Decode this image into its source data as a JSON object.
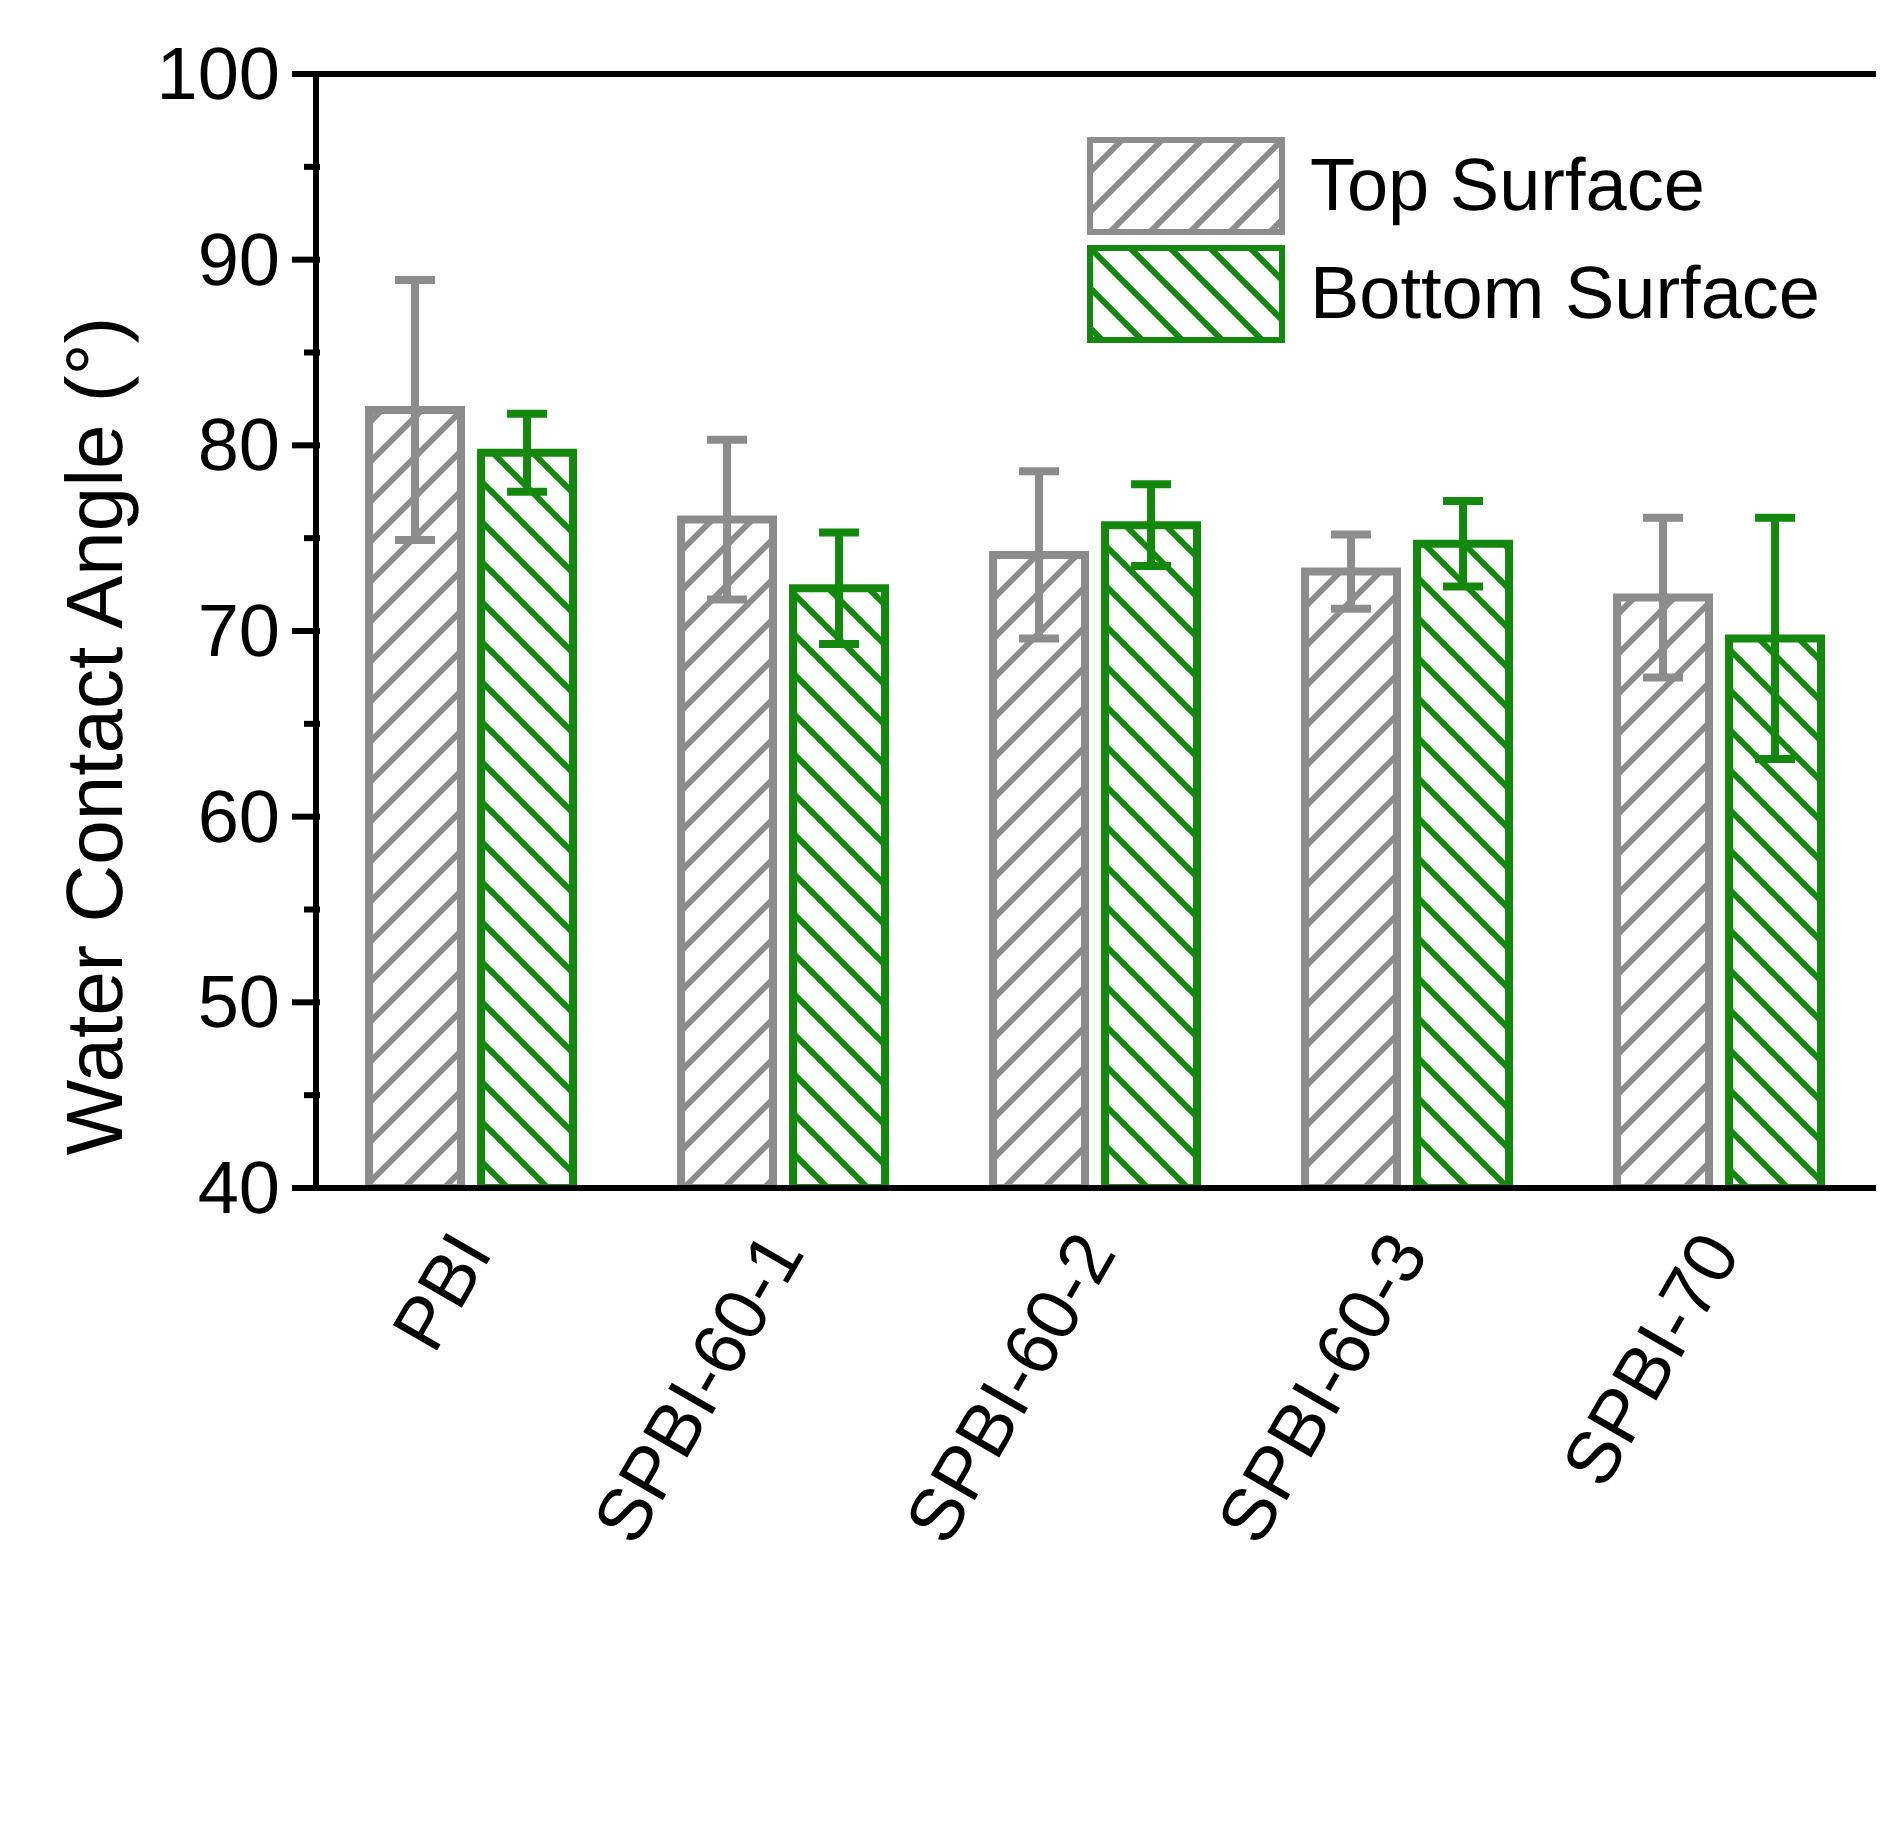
{
  "chart_data": {
    "type": "bar",
    "ylabel": "Water Contact Angle (°)",
    "categories": [
      "PBI",
      "SPBI-60-1",
      "SPBI-60-2",
      "SPBI-60-3",
      "SPBI-70"
    ],
    "series": [
      {
        "name": "Top Surface",
        "color": "#8c8c8c",
        "values": [
          81.9,
          76.0,
          74.1,
          73.2,
          71.8
        ],
        "errors": [
          7.0,
          4.3,
          4.5,
          2.0,
          4.3
        ]
      },
      {
        "name": "Bottom Surface",
        "color": "#14880e",
        "values": [
          79.6,
          72.3,
          75.7,
          74.7,
          69.6
        ],
        "errors": [
          2.1,
          3.0,
          2.2,
          2.3,
          6.5
        ]
      }
    ],
    "ylim": [
      40,
      100
    ],
    "yticks": [
      40,
      {
        "value": 45,
        "label": null
      },
      50,
      {
        "value": 55,
        "label": null
      },
      60,
      {
        "value": 65,
        "label": null
      },
      70,
      {
        "value": 75,
        "label": null
      },
      80,
      {
        "value": 85,
        "label": null
      },
      90,
      {
        "value": 95,
        "label": null
      },
      100
    ],
    "grid": false,
    "legend": "top right"
  }
}
